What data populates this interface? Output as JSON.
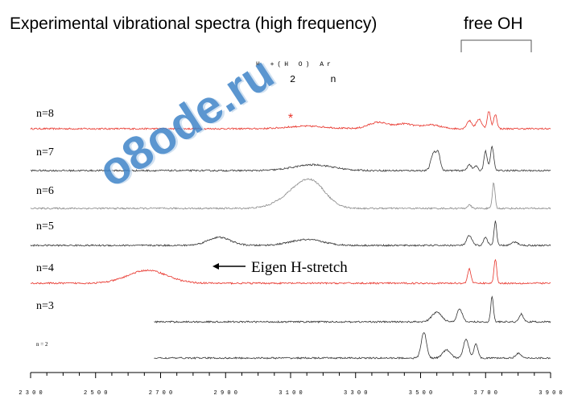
{
  "chart_data": {
    "type": "line",
    "title": "Experimental vibrational spectra (high frequency)",
    "bracket_label": "free OH",
    "formula_line1": "H+(H2O)nAr",
    "formula_line1_display": "H +(H  O) Ar",
    "formula_line2_display": "2  n",
    "annotation": "Eigen H-stretch",
    "marker": "*",
    "xlim": [
      2300,
      3900
    ],
    "xticks": [
      2300,
      2500,
      2700,
      2900,
      3100,
      3300,
      3500,
      3700,
      3900
    ],
    "xtick_labels": [
      "2 3 0 0",
      "2 5 0 0",
      "2 7 0 0",
      "2 9 0 0",
      "3 1 0 0",
      "3 3 0 0",
      "3 5 0 0",
      "3 7 0 0",
      "3 9 0 0"
    ],
    "series": [
      {
        "name": "n=8",
        "color": "#e8332a",
        "start": 2300,
        "end": 3900,
        "peaks": [
          [
            3150,
            0.08,
            60
          ],
          [
            3370,
            0.2,
            30
          ],
          [
            3450,
            0.15,
            25
          ],
          [
            3530,
            0.12,
            30
          ],
          [
            3650,
            0.25,
            8
          ],
          [
            3680,
            0.3,
            8
          ],
          [
            3710,
            0.55,
            5
          ],
          [
            3730,
            0.45,
            5
          ]
        ]
      },
      {
        "name": "n=7",
        "color": "#333333",
        "start": 2300,
        "end": 3900,
        "peaks": [
          [
            3170,
            0.18,
            60
          ],
          [
            3540,
            0.55,
            8
          ],
          [
            3555,
            0.5,
            6
          ],
          [
            3650,
            0.2,
            6
          ],
          [
            3670,
            0.15,
            5
          ],
          [
            3700,
            0.6,
            5
          ],
          [
            3720,
            0.75,
            5
          ]
        ]
      },
      {
        "name": "n=6",
        "color": "#888888",
        "start": 2300,
        "end": 3900,
        "peaks": [
          [
            3130,
            0.55,
            55
          ],
          [
            3170,
            0.45,
            40
          ],
          [
            3650,
            0.1,
            6
          ],
          [
            3725,
            0.8,
            4
          ]
        ]
      },
      {
        "name": "n=5",
        "color": "#333333",
        "start": 2300,
        "end": 3900,
        "peaks": [
          [
            2880,
            0.25,
            35
          ],
          [
            3150,
            0.18,
            50
          ],
          [
            3650,
            0.3,
            8
          ],
          [
            3700,
            0.25,
            6
          ],
          [
            3730,
            0.75,
            4
          ],
          [
            3790,
            0.1,
            10
          ]
        ]
      },
      {
        "name": "n=4",
        "color": "#e8332a",
        "start": 2300,
        "end": 3900,
        "peaks": [
          [
            2660,
            0.4,
            60
          ],
          [
            3650,
            0.45,
            5
          ],
          [
            3730,
            0.75,
            4
          ]
        ]
      },
      {
        "name": "n=3",
        "color": "#333333",
        "start": 2680,
        "end": 3900,
        "peaks": [
          [
            3550,
            0.3,
            15
          ],
          [
            3620,
            0.4,
            8
          ],
          [
            3720,
            0.8,
            4
          ],
          [
            3810,
            0.25,
            6
          ]
        ]
      },
      {
        "name": "n = 2",
        "color": "#333333",
        "start": 2680,
        "end": 3900,
        "peaks": [
          [
            3510,
            0.8,
            8
          ],
          [
            3580,
            0.25,
            12
          ],
          [
            3640,
            0.6,
            8
          ],
          [
            3670,
            0.45,
            6
          ],
          [
            3800,
            0.15,
            8
          ]
        ]
      }
    ]
  },
  "watermark": "o8ode.ru"
}
